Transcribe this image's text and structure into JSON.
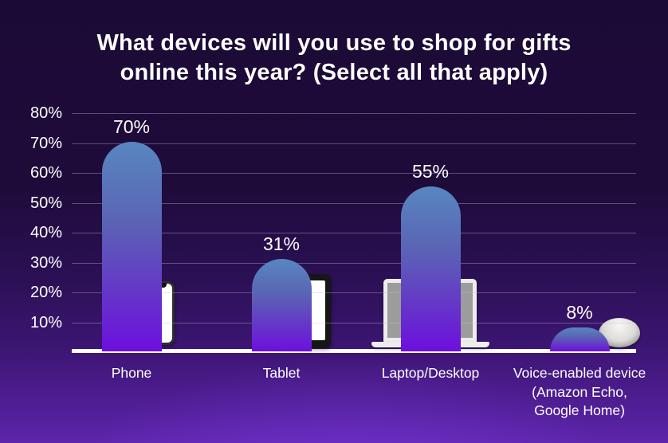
{
  "page": {
    "background_top_color": "#1c0a36",
    "background_bottom_color": "#5d25ab",
    "text_color": "#ffffff",
    "axis_line_color": "#ffffff"
  },
  "title": {
    "line1": "What devices will you use to shop for gifts",
    "line2": "online this year? (Select all that apply)"
  },
  "chart_data": {
    "type": "bar",
    "title": "What devices will you use to shop for gifts online this year? (Select all that apply)",
    "categories": [
      "Phone",
      "Tablet",
      "Laptop/Desktop",
      "Voice-enabled device (Amazon Echo, Google Home)"
    ],
    "values": [
      70,
      31,
      55,
      8
    ],
    "value_labels": [
      "70%",
      "31%",
      "55%",
      "8%"
    ],
    "yticks": [
      "80%",
      "70%",
      "60%",
      "50%",
      "40%",
      "30%",
      "20%",
      "10%"
    ],
    "ylim": [
      0,
      80
    ],
    "xlabel": "",
    "ylabel": "",
    "grid": "horizontal",
    "legend": "none",
    "bar_gradient_top": "#5886c0",
    "bar_gradient_bottom": "#6d0fdf",
    "category_icons": [
      "smartphone-icon",
      "tablet-icon",
      "laptop-icon",
      "smart-speaker-icon"
    ]
  }
}
